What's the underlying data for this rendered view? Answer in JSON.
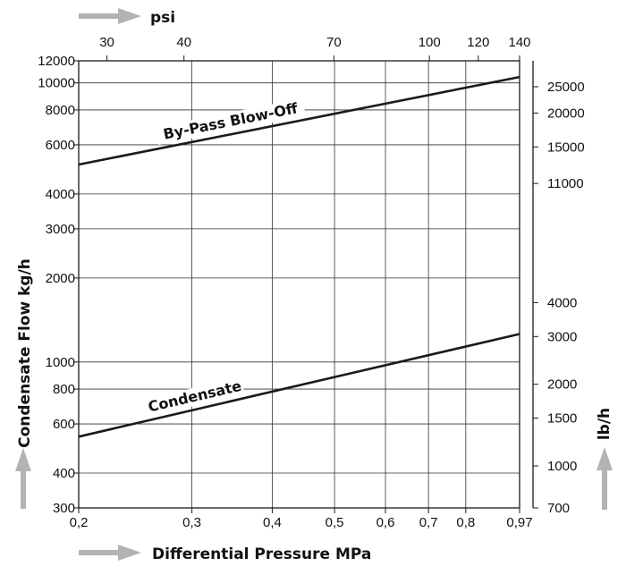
{
  "chart_data": {
    "type": "line",
    "title": "",
    "xlabel": "Differential Pressure MPa",
    "x_top_label": "psi",
    "ylabel": "Condensate Flow kg/h",
    "y_right_label": "lb/h",
    "x_scale": "log",
    "y_scale": "log",
    "xlim": [
      0.2,
      0.97
    ],
    "ylim": [
      300,
      12000
    ],
    "grid": true,
    "x_ticks": [
      {
        "v": 0.2,
        "label": "0,2"
      },
      {
        "v": 0.3,
        "label": "0,3"
      },
      {
        "v": 0.4,
        "label": "0,4"
      },
      {
        "v": 0.5,
        "label": "0,5"
      },
      {
        "v": 0.6,
        "label": "0,6"
      },
      {
        "v": 0.7,
        "label": "0,7"
      },
      {
        "v": 0.8,
        "label": "0,8"
      },
      {
        "v": 0.97,
        "label": "0,97"
      }
    ],
    "x_top_ticks": [
      {
        "v": 30,
        "label": "30"
      },
      {
        "v": 40,
        "label": "40"
      },
      {
        "v": 70,
        "label": "70"
      },
      {
        "v": 100,
        "label": "100"
      },
      {
        "v": 120,
        "label": "120"
      },
      {
        "v": 140,
        "label": "140"
      }
    ],
    "y_ticks": [
      {
        "v": 300,
        "label": "300"
      },
      {
        "v": 400,
        "label": "400"
      },
      {
        "v": 600,
        "label": "600"
      },
      {
        "v": 800,
        "label": "800"
      },
      {
        "v": 1000,
        "label": "1000"
      },
      {
        "v": 2000,
        "label": "2000"
      },
      {
        "v": 3000,
        "label": "3000"
      },
      {
        "v": 4000,
        "label": "4000"
      },
      {
        "v": 6000,
        "label": "6000"
      },
      {
        "v": 8000,
        "label": "8000"
      },
      {
        "v": 10000,
        "label": "10000"
      },
      {
        "v": 12000,
        "label": "12000"
      }
    ],
    "y_right_ticks": [
      {
        "v": 700,
        "label": "700"
      },
      {
        "v": 1000,
        "label": "1000"
      },
      {
        "v": 1500,
        "label": "1500"
      },
      {
        "v": 2000,
        "label": "2000"
      },
      {
        "v": 3000,
        "label": "3000"
      },
      {
        "v": 4000,
        "label": "4000"
      },
      {
        "v": 11000,
        "label": "11000"
      },
      {
        "v": 15000,
        "label": "15000"
      },
      {
        "v": 20000,
        "label": "20000"
      },
      {
        "v": 25000,
        "label": "25000"
      }
    ],
    "series": [
      {
        "name": "By-Pass Blow-Off",
        "x": [
          0.2,
          0.97
        ],
        "y": [
          5100,
          10500
        ]
      },
      {
        "name": "Condensate",
        "x": [
          0.2,
          0.97
        ],
        "y": [
          540,
          1260
        ]
      }
    ],
    "colors": {
      "line": "#1a1a1a",
      "grid": "#333333",
      "arrow": "#b3b3b3"
    }
  }
}
